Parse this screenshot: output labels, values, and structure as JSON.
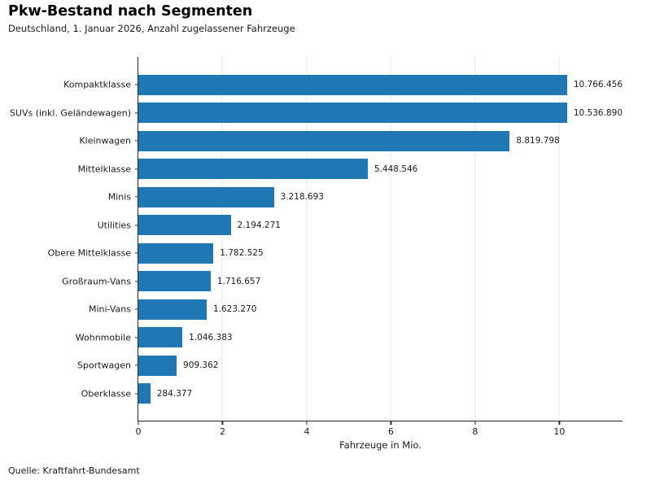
{
  "header": {
    "title": "Pkw-Bestand nach Segmenten",
    "subtitle": "Deutschland, 1. Januar 2026, Anzahl zugelassener Fahrzeuge"
  },
  "footer": {
    "source": "Quelle: Kraftfahrt-Bundesamt"
  },
  "chart_data": {
    "type": "bar",
    "orientation": "horizontal",
    "title": "Pkw-Bestand nach Segmenten",
    "subtitle": "Deutschland, 1. Januar 2026, Anzahl zugelassener Fahrzeuge",
    "categories": [
      "Kompaktklasse",
      "SUVs (inkl. Geländewagen)",
      "Kleinwagen",
      "Mittelklasse",
      "Minis",
      "Utilities",
      "Obere Mittelklasse",
      "Großraum-Vans",
      "Mini-Vans",
      "Wohnmobile",
      "Sportwagen",
      "Oberklasse"
    ],
    "values": [
      10766456,
      10536890,
      8819798,
      5448546,
      3218693,
      2194271,
      1782525,
      1716657,
      1623270,
      1046383,
      909362,
      284377
    ],
    "value_labels": [
      "10.766.456",
      "10.536.890",
      "8.819.798",
      "5.448.546",
      "3.218.693",
      "2.194.271",
      "1.782.525",
      "1.716.657",
      "1.623.270",
      "1.046.383",
      "909.362",
      "284.377"
    ],
    "xlabel": "Fahrzeuge in Mio.",
    "x_ticks": [
      0,
      2,
      4,
      6,
      8,
      10
    ],
    "x_tick_labels": [
      "0",
      "2",
      "4",
      "6",
      "8",
      "10"
    ],
    "xlim": [
      0,
      11.5
    ],
    "x_unit_divisor": 1000000,
    "bar_color": "#1f77b4",
    "gridline_color": "#e6e6e6",
    "grid": "vertical",
    "legend": "none",
    "source": "Quelle: Kraftfahrt-Bundesamt"
  }
}
